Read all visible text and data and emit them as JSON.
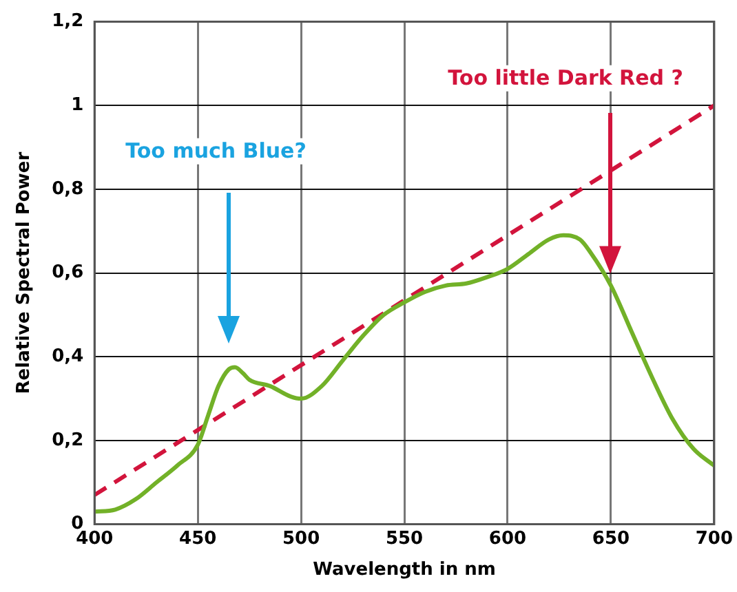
{
  "chart_data": {
    "type": "line",
    "xlabel": "Wavelength in nm",
    "ylabel": "Relative Spectral Power",
    "xlim": [
      400,
      700
    ],
    "xticks": [
      400,
      450,
      500,
      550,
      600,
      650,
      700
    ],
    "ylim": [
      0,
      1.2
    ],
    "yticks": [
      0,
      {
        "value": 0.2,
        "label": "0,2"
      },
      {
        "value": 0.4,
        "label": "0,4"
      },
      {
        "value": 0.6,
        "label": "0,6"
      },
      {
        "value": 0.8,
        "label": "0,8"
      },
      1,
      {
        "value": 1.2,
        "label": "1,2"
      }
    ],
    "grid": true,
    "legend": false,
    "marker": "none",
    "series": [
      {
        "color": "#72b128",
        "line_style": "solid",
        "x": [
          400,
          410,
          420,
          430,
          440,
          450,
          455,
          460,
          465,
          468,
          472,
          475,
          485,
          495,
          500,
          510,
          520,
          530,
          540,
          550,
          560,
          570,
          580,
          590,
          600,
          610,
          620,
          627,
          635,
          640,
          650,
          660,
          670,
          680,
          690,
          700
        ],
        "values": [
          0.03,
          0.035,
          0.06,
          0.1,
          0.14,
          0.19,
          0.26,
          0.33,
          0.37,
          0.375,
          0.36,
          0.345,
          0.33,
          0.305,
          0.3,
          0.33,
          0.39,
          0.45,
          0.5,
          0.53,
          0.555,
          0.57,
          0.575,
          0.59,
          0.61,
          0.645,
          0.68,
          0.69,
          0.68,
          0.65,
          0.57,
          0.46,
          0.35,
          0.25,
          0.18,
          0.14
        ]
      },
      {
        "color": "#d2143c",
        "line_style": "dashed",
        "x": [
          400,
          700
        ],
        "values": [
          0.07,
          1.0
        ]
      }
    ],
    "annotations": [
      "Too much Blue?",
      "Too little Dark Red ?"
    ]
  }
}
